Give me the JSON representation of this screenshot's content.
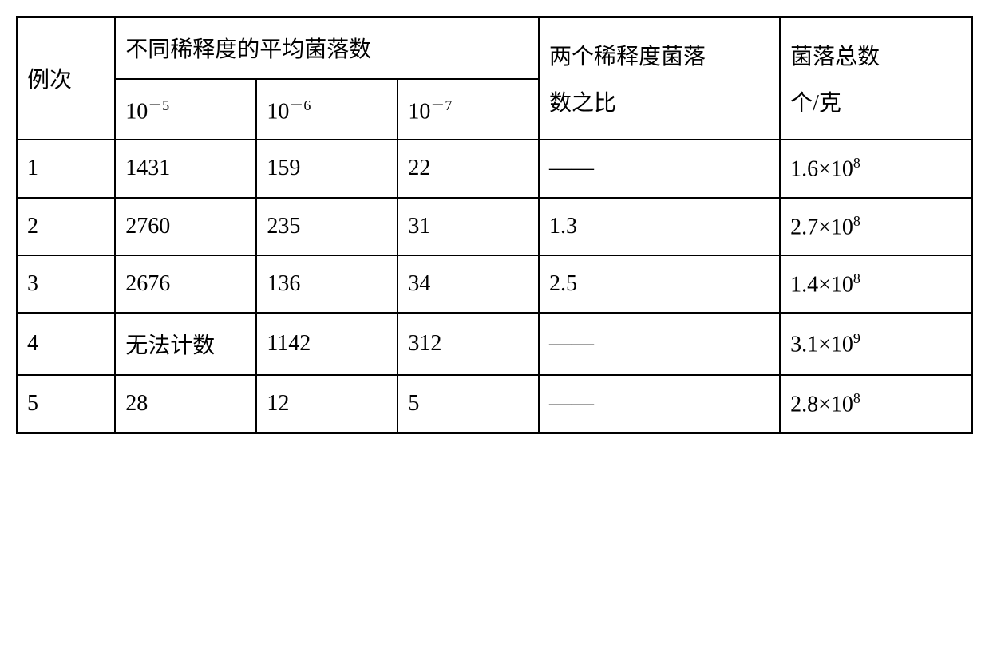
{
  "headers": {
    "col1": "例次",
    "col2_span": "不同稀释度的平均菌落数",
    "col2a_base": "10",
    "col2a_exp": "－5",
    "col2b_base": "10",
    "col2b_exp": "－6",
    "col2c_base": "10",
    "col2c_exp": "－7",
    "col3_l1": "两个稀释度菌落",
    "col3_l2": "数之比",
    "col4_l1": "菌落总数",
    "col4_l2": "个/克"
  },
  "rows": [
    {
      "n": "1",
      "d5": "1431",
      "d6": "159",
      "d7": "22",
      "ratio": "——",
      "total_base": "1.6×10",
      "total_exp": "8"
    },
    {
      "n": "2",
      "d5": "2760",
      "d6": "235",
      "d7": "31",
      "ratio": "1.3",
      "total_base": "2.7×10",
      "total_exp": "8"
    },
    {
      "n": "3",
      "d5": "2676",
      "d6": "136",
      "d7": "34",
      "ratio": "2.5",
      "total_base": "1.4×10",
      "total_exp": "8"
    },
    {
      "n": "4",
      "d5": "无法计数",
      "d6": "1142",
      "d7": "312",
      "ratio": "——",
      "total_base": "3.1×10",
      "total_exp": "9"
    },
    {
      "n": "5",
      "d5": "28",
      "d6": "12",
      "d7": "5",
      "ratio": "——",
      "total_base": "2.8×10",
      "total_exp": "8"
    }
  ],
  "style": {
    "border_color": "#000000",
    "background_color": "#ffffff",
    "font_size": 28,
    "sup_font_size": 18,
    "border_width": 2
  }
}
